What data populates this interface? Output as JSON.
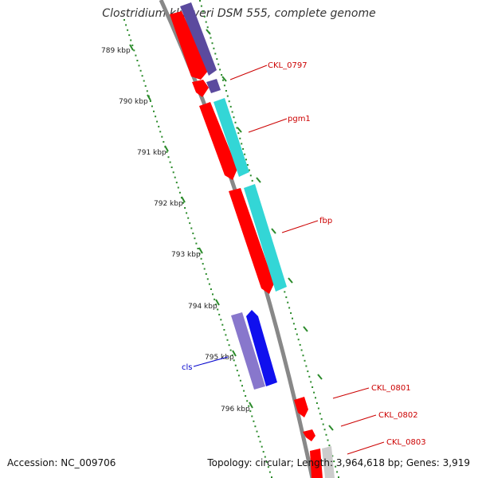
{
  "map": {
    "title": "Clostridium kluyveri DSM 555, complete genome",
    "accession_text": "Accession: NC_009706",
    "summary_text": "Topology: circular; Length: 3,964,618 bp; Genes: 3,919"
  },
  "ticks": [
    {
      "label": "789 kbp"
    },
    {
      "label": "790 kbp"
    },
    {
      "label": "791 kbp"
    },
    {
      "label": "792 kbp"
    },
    {
      "label": "793 kbp"
    },
    {
      "label": "794 kbp"
    },
    {
      "label": "795 kbp"
    },
    {
      "label": "796 kbp"
    }
  ],
  "gene_labels": [
    {
      "name": "CKL_0797",
      "color": "#cc0000"
    },
    {
      "name": "pgm1",
      "color": "#cc0000"
    },
    {
      "name": "fbp",
      "color": "#cc0000"
    },
    {
      "name": "cls",
      "color": "#0000cc"
    },
    {
      "name": "CKL_0801",
      "color": "#cc0000"
    },
    {
      "name": "CKL_0802",
      "color": "#cc0000"
    },
    {
      "name": "CKL_0803",
      "color": "#cc0000"
    }
  ],
  "colors": {
    "cds": "#ff0000",
    "cog_cyan": "#33d6d6",
    "cog_purple": "#5b4a9e",
    "cog_lavender": "#8877cc",
    "cog_blue": "#1010ee",
    "cog_grey": "#cccccc",
    "backbone": "#888888",
    "tick_green": "#2a8a2a"
  }
}
